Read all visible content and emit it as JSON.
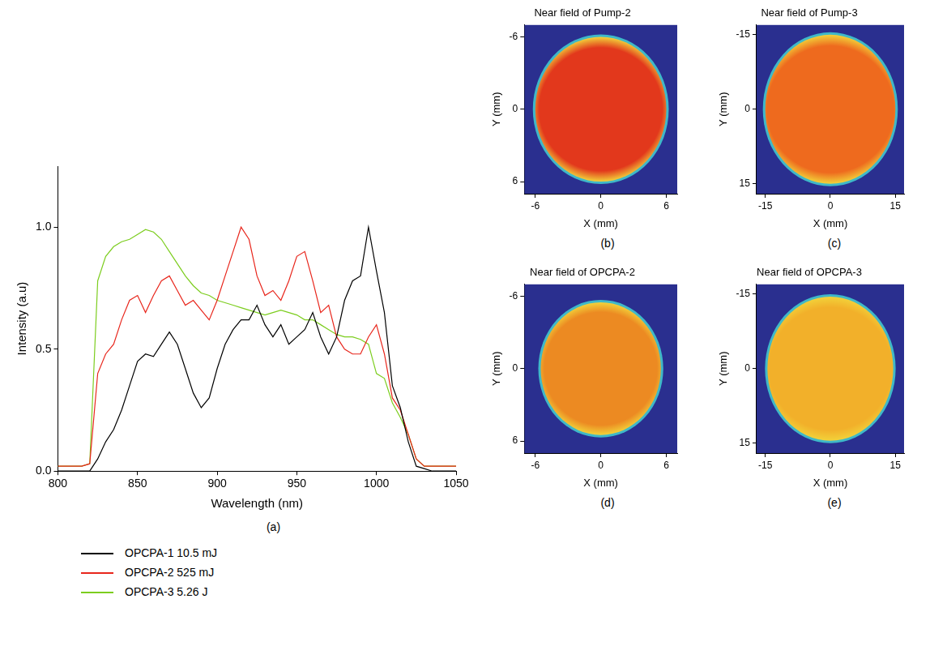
{
  "chart_data": [
    {
      "type": "line",
      "x_label": "Wavelength (nm)",
      "y_label": "Intensity (a.u)",
      "panel_label": "(a)",
      "x": [
        800,
        805,
        810,
        815,
        820,
        825,
        830,
        835,
        840,
        845,
        850,
        855,
        860,
        865,
        870,
        875,
        880,
        885,
        890,
        895,
        900,
        905,
        910,
        915,
        920,
        925,
        930,
        935,
        940,
        945,
        950,
        955,
        960,
        965,
        970,
        975,
        980,
        985,
        990,
        995,
        1000,
        1005,
        1010,
        1015,
        1020,
        1025,
        1030,
        1035,
        1040,
        1045,
        1050
      ],
      "series": [
        {
          "name": "OPCPA-1 10.5 mJ",
          "color": "#000000",
          "values": [
            0,
            0,
            0,
            0,
            0,
            0.05,
            0.12,
            0.17,
            0.25,
            0.35,
            0.45,
            0.48,
            0.47,
            0.52,
            0.57,
            0.52,
            0.42,
            0.32,
            0.26,
            0.3,
            0.42,
            0.52,
            0.58,
            0.62,
            0.62,
            0.68,
            0.6,
            0.55,
            0.6,
            0.52,
            0.55,
            0.58,
            0.65,
            0.55,
            0.48,
            0.55,
            0.7,
            0.78,
            0.8,
            1.0,
            0.82,
            0.65,
            0.35,
            0.26,
            0.12,
            0.02,
            0.01,
            0,
            0,
            0,
            0
          ]
        },
        {
          "name": "OPCPA-2 525 mJ",
          "color": "#e8261c",
          "values": [
            0.02,
            0.02,
            0.02,
            0.02,
            0.03,
            0.4,
            0.48,
            0.52,
            0.62,
            0.7,
            0.72,
            0.65,
            0.72,
            0.78,
            0.8,
            0.74,
            0.68,
            0.7,
            0.66,
            0.62,
            0.7,
            0.8,
            0.9,
            1.0,
            0.95,
            0.8,
            0.72,
            0.74,
            0.7,
            0.78,
            0.88,
            0.9,
            0.78,
            0.65,
            0.68,
            0.55,
            0.5,
            0.48,
            0.48,
            0.55,
            0.6,
            0.48,
            0.3,
            0.25,
            0.15,
            0.05,
            0.02,
            0.02,
            0.02,
            0.02,
            0.02
          ]
        },
        {
          "name": "OPCPA-3 5.26 J",
          "color": "#7ccd1e",
          "values": [
            0.02,
            0.02,
            0.02,
            0.02,
            0.03,
            0.78,
            0.88,
            0.92,
            0.94,
            0.95,
            0.97,
            0.99,
            0.98,
            0.95,
            0.9,
            0.85,
            0.8,
            0.76,
            0.73,
            0.72,
            0.7,
            0.69,
            0.68,
            0.67,
            0.66,
            0.65,
            0.64,
            0.65,
            0.66,
            0.65,
            0.64,
            0.62,
            0.62,
            0.6,
            0.58,
            0.56,
            0.55,
            0.55,
            0.54,
            0.52,
            0.4,
            0.38,
            0.28,
            0.22,
            0.15,
            0.05,
            0.02,
            0.02,
            0.02,
            0.02,
            0.02
          ]
        }
      ],
      "xlim": [
        800,
        1050
      ],
      "xticks": [
        800,
        850,
        900,
        950,
        1000,
        1050
      ],
      "ylim": [
        0,
        1.25
      ],
      "yticks": [
        {
          "value": 0,
          "label": "0.0"
        },
        {
          "value": 0.5,
          "label": "0.5"
        },
        {
          "value": 1,
          "label": "1.0"
        }
      ],
      "grid": false,
      "legend": "bottom"
    },
    {
      "type": "image",
      "title": "Near field of Pump-2",
      "x_label": "X (mm)",
      "y_label": "Y (mm)",
      "panel_label": "(b)",
      "xlim": [
        -7,
        7
      ],
      "xticks": [
        -6,
        0,
        6
      ],
      "ylim": [
        -7,
        7
      ],
      "yticks": [
        -6,
        0,
        6
      ],
      "beam_center": [
        0,
        0
      ],
      "beam_radius": 6,
      "color": "#e2381c",
      "grid": false
    },
    {
      "type": "image",
      "title": "Near field of Pump-3",
      "x_label": "X (mm)",
      "y_label": "Y (mm)",
      "panel_label": "(c)",
      "xlim": [
        -17,
        17
      ],
      "xticks": [
        -15,
        0,
        15
      ],
      "ylim": [
        -17,
        17
      ],
      "yticks": [
        -15,
        0,
        15
      ],
      "beam_center": [
        0,
        0
      ],
      "beam_radius": 15,
      "color": "#ee6a1e",
      "grid": false
    },
    {
      "type": "image",
      "title": "Near field of OPCPA-2",
      "x_label": "X (mm)",
      "y_label": "Y (mm)",
      "panel_label": "(d)",
      "xlim": [
        -7,
        7
      ],
      "xticks": [
        -6,
        0,
        6
      ],
      "ylim": [
        -7,
        7
      ],
      "yticks": [
        -6,
        0,
        6
      ],
      "beam_center": [
        0,
        0
      ],
      "beam_radius": 5.5,
      "color": "#ec8a22",
      "grid": false
    },
    {
      "type": "image",
      "title": "Near field of OPCPA-3",
      "x_label": "X (mm)",
      "y_label": "Y (mm)",
      "panel_label": "(e)",
      "xlim": [
        -17,
        17
      ],
      "xticks": [
        -15,
        0,
        15
      ],
      "ylim": [
        -17,
        17
      ],
      "yticks": [
        -15,
        0,
        15
      ],
      "beam_center": [
        0,
        0
      ],
      "beam_radius": 14.5,
      "color": "#f2b02a",
      "grid": false
    }
  ]
}
